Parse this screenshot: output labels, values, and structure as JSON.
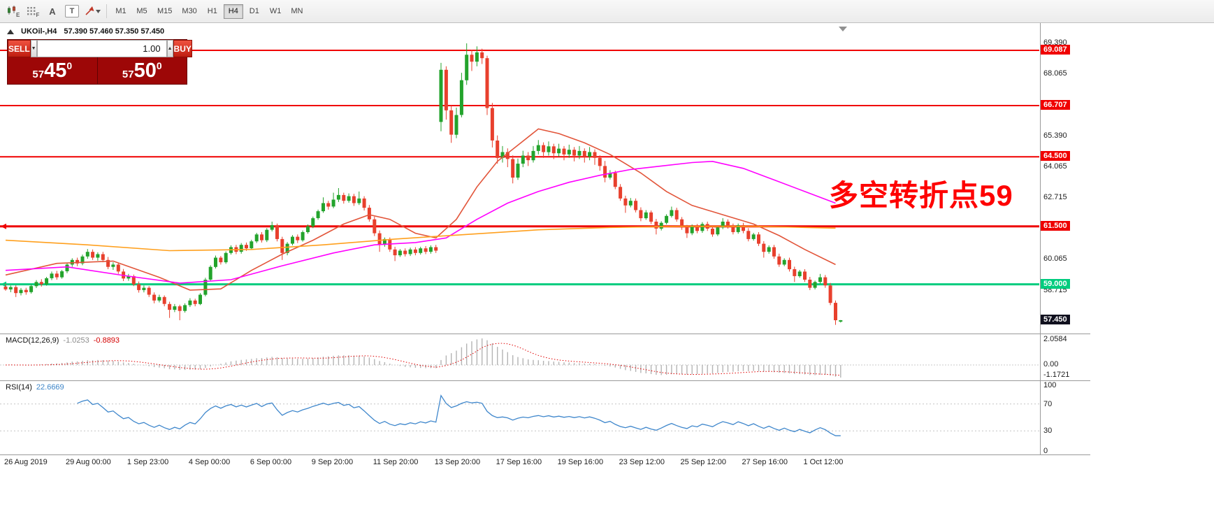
{
  "toolbar": {
    "icons": [
      {
        "name": "new-chart-icon"
      },
      {
        "name": "profiles-icon"
      },
      {
        "name": "text-cursor-icon",
        "glyph": "A"
      },
      {
        "name": "text-label-icon",
        "glyph": "T",
        "boxed": true
      },
      {
        "name": "arrow-tools-icon"
      }
    ],
    "timeframes": [
      "M1",
      "M5",
      "M15",
      "M30",
      "H1",
      "H4",
      "D1",
      "W1",
      "MN"
    ],
    "active_timeframe": "H4"
  },
  "chart_header": {
    "collapse_glyph": "▲",
    "symbol_period": "UKOil-,H4",
    "ohlc": "57.390 57.460 57.350 57.450"
  },
  "trade_panel": {
    "sell_label": "SELL",
    "buy_label": "BUY",
    "volume": "1.00",
    "spin_down_glyph": "▼",
    "spin_up_glyph": "▲",
    "sell_price": {
      "prefix": "57",
      "pips": "45",
      "sup": "0"
    },
    "buy_price": {
      "prefix": "57",
      "pips": "50",
      "sup": "0"
    }
  },
  "annotation": {
    "text": "多空转折点59",
    "color": "#fe0000"
  },
  "chart_data": {
    "type": "candlestick",
    "symbol": "UKOil-",
    "timeframe": "H4",
    "colors": {
      "bull": "#23a32c",
      "bear": "#e8402d",
      "current_label_bg": "#10101e"
    },
    "price_axis_plain": [
      69.39,
      68.065,
      65.39,
      64.065,
      62.715,
      60.065,
      58.715
    ],
    "h_lines": [
      {
        "value": 69.087,
        "color": "#f00000",
        "width": 2
      },
      {
        "value": 66.707,
        "color": "#f00000",
        "width": 2
      },
      {
        "value": 64.5,
        "color": "#f00000",
        "width": 2
      },
      {
        "value": 61.5,
        "color": "#ee0000",
        "width": 3,
        "anchor": true
      },
      {
        "value": 59.0,
        "color": "#00cc7e",
        "width": 3,
        "anchor": true
      }
    ],
    "current_price": 57.45,
    "x_labels": [
      {
        "index": 0,
        "text": "26 Aug 2019"
      },
      {
        "index": 12,
        "text": "29 Aug 00:00"
      },
      {
        "index": 24,
        "text": "1 Sep 23:00"
      },
      {
        "index": 36,
        "text": "4 Sep 00:00"
      },
      {
        "index": 48,
        "text": "6 Sep 00:00"
      },
      {
        "index": 60,
        "text": "9 Sep 20:00"
      },
      {
        "index": 72,
        "text": "11 Sep 20:00"
      },
      {
        "index": 84,
        "text": "13 Sep 20:00"
      },
      {
        "index": 96,
        "text": "17 Sep 16:00"
      },
      {
        "index": 108,
        "text": "19 Sep 16:00"
      },
      {
        "index": 120,
        "text": "23 Sep 12:00"
      },
      {
        "index": 132,
        "text": "25 Sep 12:00"
      },
      {
        "index": 144,
        "text": "27 Sep 16:00"
      },
      {
        "index": 156,
        "text": "1 Oct 12:00"
      }
    ],
    "ma_lines": [
      {
        "name": "MA-fast",
        "color": "#e2553a",
        "points": [
          [
            0,
            59.4
          ],
          [
            10,
            59.9
          ],
          [
            21,
            60.0
          ],
          [
            30,
            59.3
          ],
          [
            36,
            58.75
          ],
          [
            42,
            58.8
          ],
          [
            48,
            59.6
          ],
          [
            54,
            60.3
          ],
          [
            60,
            60.9
          ],
          [
            66,
            61.6
          ],
          [
            71,
            62.0
          ],
          [
            75,
            61.8
          ],
          [
            80,
            61.2
          ],
          [
            84,
            61.0
          ],
          [
            88,
            61.8
          ],
          [
            92,
            63.2
          ],
          [
            96,
            64.3
          ],
          [
            100,
            65.0
          ],
          [
            104,
            65.7
          ],
          [
            108,
            65.5
          ],
          [
            113,
            65.1
          ],
          [
            118,
            64.6
          ],
          [
            124,
            63.8
          ],
          [
            129,
            63.0
          ],
          [
            134,
            62.4
          ],
          [
            140,
            62.0
          ],
          [
            146,
            61.6
          ],
          [
            151,
            61.1
          ],
          [
            156,
            60.5
          ],
          [
            162,
            59.85
          ]
        ]
      },
      {
        "name": "MA-medium",
        "color": "#ff00ff",
        "points": [
          [
            0,
            59.6
          ],
          [
            12,
            59.75
          ],
          [
            24,
            59.35
          ],
          [
            34,
            59.05
          ],
          [
            44,
            59.2
          ],
          [
            54,
            59.8
          ],
          [
            64,
            60.35
          ],
          [
            72,
            60.7
          ],
          [
            80,
            60.8
          ],
          [
            86,
            61.0
          ],
          [
            92,
            61.8
          ],
          [
            98,
            62.5
          ],
          [
            104,
            63.0
          ],
          [
            110,
            63.4
          ],
          [
            116,
            63.7
          ],
          [
            122,
            63.95
          ],
          [
            128,
            64.1
          ],
          [
            134,
            64.25
          ],
          [
            138,
            64.3
          ],
          [
            144,
            64.0
          ],
          [
            150,
            63.5
          ],
          [
            156,
            63.0
          ],
          [
            162,
            62.5
          ]
        ]
      },
      {
        "name": "MA-slow",
        "color": "#ffa01e",
        "points": [
          [
            0,
            60.9
          ],
          [
            16,
            60.7
          ],
          [
            32,
            60.45
          ],
          [
            48,
            60.5
          ],
          [
            62,
            60.7
          ],
          [
            76,
            60.95
          ],
          [
            90,
            61.15
          ],
          [
            104,
            61.35
          ],
          [
            118,
            61.45
          ],
          [
            132,
            61.5
          ],
          [
            146,
            61.5
          ],
          [
            156,
            61.45
          ],
          [
            162,
            61.42
          ]
        ]
      }
    ],
    "macd": {
      "label": "MACD(12,26,9)",
      "value_main": "-1.0253",
      "value_signal": "-0.8893",
      "fast": 12,
      "slow": 26,
      "signal": 9,
      "axis": [
        "2.0584",
        "0.00",
        "-1.1721"
      ]
    },
    "rsi": {
      "label": "RSI(14)",
      "value": "22.6669",
      "period": 14,
      "axis": [
        "100",
        "70",
        "30",
        "0"
      ],
      "levels": [
        70,
        30
      ]
    },
    "candles": [
      [
        58.9,
        59.02,
        58.72,
        58.78
      ],
      [
        58.78,
        58.95,
        58.66,
        58.88
      ],
      [
        58.88,
        58.96,
        58.45,
        58.62
      ],
      [
        58.62,
        58.84,
        58.52,
        58.76
      ],
      [
        58.76,
        58.85,
        58.55,
        58.66
      ],
      [
        58.66,
        59.0,
        58.6,
        58.92
      ],
      [
        58.92,
        59.18,
        58.84,
        59.1
      ],
      [
        59.1,
        59.22,
        58.9,
        59.0
      ],
      [
        59.0,
        59.32,
        58.94,
        59.26
      ],
      [
        59.26,
        59.55,
        59.18,
        59.46
      ],
      [
        59.46,
        59.58,
        59.2,
        59.3
      ],
      [
        59.3,
        59.62,
        59.24,
        59.56
      ],
      [
        59.56,
        59.92,
        59.48,
        59.85
      ],
      [
        59.85,
        60.12,
        59.75,
        60.05
      ],
      [
        60.05,
        60.15,
        59.78,
        59.9
      ],
      [
        59.9,
        60.28,
        59.82,
        60.2
      ],
      [
        60.2,
        60.52,
        60.1,
        60.4
      ],
      [
        60.4,
        60.5,
        60.05,
        60.15
      ],
      [
        60.15,
        60.38,
        60.02,
        60.3
      ],
      [
        60.3,
        60.4,
        59.95,
        60.05
      ],
      [
        60.05,
        60.18,
        59.65,
        59.75
      ],
      [
        59.75,
        59.95,
        59.62,
        59.85
      ],
      [
        59.85,
        59.92,
        59.45,
        59.55
      ],
      [
        59.55,
        59.66,
        59.14,
        59.25
      ],
      [
        59.25,
        59.45,
        59.15,
        59.35
      ],
      [
        59.35,
        59.42,
        58.92,
        59.0
      ],
      [
        59.0,
        59.12,
        58.64,
        58.75
      ],
      [
        58.75,
        58.95,
        58.65,
        58.85
      ],
      [
        58.85,
        58.92,
        58.45,
        58.55
      ],
      [
        58.55,
        58.65,
        58.18,
        58.3
      ],
      [
        58.3,
        58.55,
        58.22,
        58.45
      ],
      [
        58.45,
        58.52,
        58.05,
        58.15
      ],
      [
        58.15,
        58.25,
        57.55,
        57.9
      ],
      [
        57.9,
        58.15,
        57.8,
        58.05
      ],
      [
        58.05,
        58.12,
        57.45,
        57.85
      ],
      [
        57.85,
        58.18,
        57.78,
        58.1
      ],
      [
        58.1,
        58.4,
        58.02,
        58.3
      ],
      [
        58.3,
        58.38,
        58.05,
        58.15
      ],
      [
        58.15,
        58.62,
        58.1,
        58.55
      ],
      [
        58.55,
        59.28,
        58.48,
        59.2
      ],
      [
        59.2,
        59.82,
        59.12,
        59.75
      ],
      [
        59.75,
        60.24,
        59.68,
        60.15
      ],
      [
        60.15,
        60.22,
        59.85,
        59.95
      ],
      [
        59.95,
        60.42,
        59.88,
        60.35
      ],
      [
        60.35,
        60.68,
        60.28,
        60.6
      ],
      [
        60.6,
        60.7,
        60.3,
        60.4
      ],
      [
        60.4,
        60.78,
        60.32,
        60.7
      ],
      [
        60.7,
        60.8,
        60.44,
        60.55
      ],
      [
        60.55,
        60.92,
        60.48,
        60.85
      ],
      [
        60.85,
        61.22,
        60.78,
        61.15
      ],
      [
        61.15,
        61.25,
        60.8,
        60.9
      ],
      [
        60.9,
        61.42,
        60.82,
        61.35
      ],
      [
        61.35,
        61.7,
        61.28,
        61.55
      ],
      [
        61.55,
        61.62,
        60.85,
        60.95
      ],
      [
        60.95,
        61.05,
        60.05,
        60.35
      ],
      [
        60.35,
        60.82,
        60.25,
        60.75
      ],
      [
        60.75,
        61.12,
        60.68,
        61.05
      ],
      [
        61.05,
        61.15,
        60.78,
        60.9
      ],
      [
        60.9,
        61.32,
        60.84,
        61.25
      ],
      [
        61.25,
        61.58,
        61.18,
        61.5
      ],
      [
        61.5,
        61.92,
        61.42,
        61.85
      ],
      [
        61.85,
        62.22,
        61.78,
        62.15
      ],
      [
        62.15,
        62.75,
        62.08,
        62.5
      ],
      [
        62.5,
        62.6,
        62.22,
        62.35
      ],
      [
        62.35,
        62.95,
        62.28,
        62.65
      ],
      [
        62.65,
        63.15,
        62.55,
        62.85
      ],
      [
        62.85,
        62.95,
        62.48,
        62.6
      ],
      [
        62.6,
        62.92,
        62.52,
        62.8
      ],
      [
        62.8,
        62.9,
        62.38,
        62.5
      ],
      [
        62.5,
        63.0,
        62.42,
        62.7
      ],
      [
        62.7,
        62.8,
        62.18,
        62.3
      ],
      [
        62.3,
        62.42,
        61.7,
        61.8
      ],
      [
        61.8,
        61.92,
        61.08,
        61.2
      ],
      [
        61.2,
        61.32,
        60.4,
        60.7
      ],
      [
        60.7,
        61.02,
        60.62,
        60.95
      ],
      [
        60.95,
        61.02,
        60.4,
        60.5
      ],
      [
        60.5,
        60.62,
        60.0,
        60.25
      ],
      [
        60.25,
        60.52,
        60.18,
        60.45
      ],
      [
        60.45,
        60.55,
        60.2,
        60.3
      ],
      [
        60.3,
        60.58,
        60.22,
        60.5
      ],
      [
        60.5,
        60.6,
        60.25,
        60.35
      ],
      [
        60.35,
        60.62,
        60.28,
        60.55
      ],
      [
        60.55,
        60.65,
        60.3,
        60.4
      ],
      [
        60.4,
        60.68,
        60.32,
        60.6
      ],
      [
        60.6,
        60.7,
        60.35,
        60.45
      ],
      [
        66.0,
        68.55,
        65.6,
        68.25
      ],
      [
        68.25,
        68.4,
        66.1,
        66.5
      ],
      [
        66.5,
        66.72,
        65.1,
        65.45
      ],
      [
        65.45,
        66.62,
        65.3,
        66.3
      ],
      [
        66.3,
        68.12,
        66.2,
        67.8
      ],
      [
        67.8,
        69.39,
        67.6,
        68.9
      ],
      [
        68.9,
        69.12,
        68.2,
        68.6
      ],
      [
        68.6,
        69.26,
        68.4,
        69.0
      ],
      [
        69.0,
        69.16,
        68.5,
        68.75
      ],
      [
        68.75,
        68.86,
        66.3,
        66.6
      ],
      [
        66.6,
        66.82,
        64.9,
        65.2
      ],
      [
        65.2,
        65.42,
        64.2,
        64.45
      ],
      [
        64.45,
        64.96,
        64.25,
        64.7
      ],
      [
        64.7,
        64.86,
        64.05,
        64.4
      ],
      [
        64.4,
        64.56,
        63.35,
        63.6
      ],
      [
        63.6,
        64.42,
        63.5,
        64.2
      ],
      [
        64.2,
        64.76,
        64.05,
        64.55
      ],
      [
        64.55,
        64.7,
        64.1,
        64.35
      ],
      [
        64.35,
        64.96,
        64.25,
        64.75
      ],
      [
        64.75,
        65.22,
        64.6,
        65.0
      ],
      [
        65.0,
        65.12,
        64.45,
        64.7
      ],
      [
        64.7,
        65.16,
        64.55,
        64.95
      ],
      [
        64.95,
        65.06,
        64.4,
        64.65
      ],
      [
        64.65,
        65.06,
        64.5,
        64.85
      ],
      [
        64.85,
        64.96,
        64.35,
        64.6
      ],
      [
        64.6,
        65.02,
        64.45,
        64.8
      ],
      [
        64.8,
        64.92,
        64.3,
        64.55
      ],
      [
        64.55,
        64.96,
        64.4,
        64.75
      ],
      [
        64.75,
        64.86,
        64.25,
        64.5
      ],
      [
        64.5,
        64.92,
        64.35,
        64.7
      ],
      [
        64.7,
        64.82,
        64.15,
        64.45
      ],
      [
        64.45,
        64.56,
        63.9,
        64.1
      ],
      [
        64.1,
        64.32,
        63.4,
        63.6
      ],
      [
        63.6,
        63.92,
        63.52,
        63.8
      ],
      [
        63.8,
        63.9,
        63.1,
        63.2
      ],
      [
        63.2,
        63.32,
        62.6,
        62.7
      ],
      [
        62.7,
        62.82,
        62.08,
        62.4
      ],
      [
        62.4,
        62.72,
        62.32,
        62.6
      ],
      [
        62.6,
        62.7,
        62.1,
        62.2
      ],
      [
        62.2,
        62.32,
        61.72,
        61.85
      ],
      [
        61.85,
        62.2,
        61.78,
        62.1
      ],
      [
        62.1,
        62.18,
        61.6,
        61.7
      ],
      [
        61.7,
        61.82,
        61.15,
        61.4
      ],
      [
        61.4,
        61.72,
        61.32,
        61.65
      ],
      [
        61.65,
        62.02,
        61.58,
        61.95
      ],
      [
        61.95,
        62.35,
        61.88,
        62.2
      ],
      [
        62.2,
        62.3,
        61.7,
        61.8
      ],
      [
        61.8,
        61.9,
        61.35,
        61.45
      ],
      [
        61.45,
        61.56,
        61.0,
        61.2
      ],
      [
        61.2,
        61.58,
        61.12,
        61.5
      ],
      [
        61.5,
        61.6,
        61.2,
        61.3
      ],
      [
        61.3,
        61.68,
        61.22,
        61.6
      ],
      [
        61.6,
        61.7,
        61.3,
        61.4
      ],
      [
        61.4,
        61.52,
        61.05,
        61.15
      ],
      [
        61.15,
        61.52,
        61.08,
        61.45
      ],
      [
        61.45,
        61.85,
        61.38,
        61.7
      ],
      [
        61.7,
        61.8,
        61.4,
        61.5
      ],
      [
        61.5,
        61.62,
        61.15,
        61.25
      ],
      [
        61.25,
        61.62,
        61.18,
        61.55
      ],
      [
        61.55,
        61.65,
        61.2,
        61.3
      ],
      [
        61.3,
        61.42,
        60.85,
        60.95
      ],
      [
        60.95,
        61.22,
        60.88,
        61.15
      ],
      [
        61.15,
        61.25,
        60.65,
        60.75
      ],
      [
        60.75,
        60.86,
        60.15,
        60.4
      ],
      [
        60.4,
        60.68,
        60.32,
        60.6
      ],
      [
        60.6,
        60.7,
        60.1,
        60.2
      ],
      [
        60.2,
        60.32,
        59.75,
        59.85
      ],
      [
        59.85,
        60.12,
        59.78,
        60.05
      ],
      [
        60.05,
        60.15,
        59.55,
        59.65
      ],
      [
        59.65,
        59.76,
        59.1,
        59.35
      ],
      [
        59.35,
        59.62,
        59.28,
        59.55
      ],
      [
        59.55,
        59.65,
        59.1,
        59.2
      ],
      [
        59.2,
        59.32,
        58.75,
        58.85
      ],
      [
        58.85,
        59.16,
        58.78,
        59.1
      ],
      [
        59.1,
        59.45,
        59.02,
        59.3
      ],
      [
        59.3,
        59.4,
        58.85,
        58.95
      ],
      [
        58.95,
        59.06,
        58.1,
        58.2
      ],
      [
        58.2,
        58.3,
        57.25,
        57.45
      ],
      [
        57.39,
        57.46,
        57.35,
        57.45
      ]
    ]
  }
}
